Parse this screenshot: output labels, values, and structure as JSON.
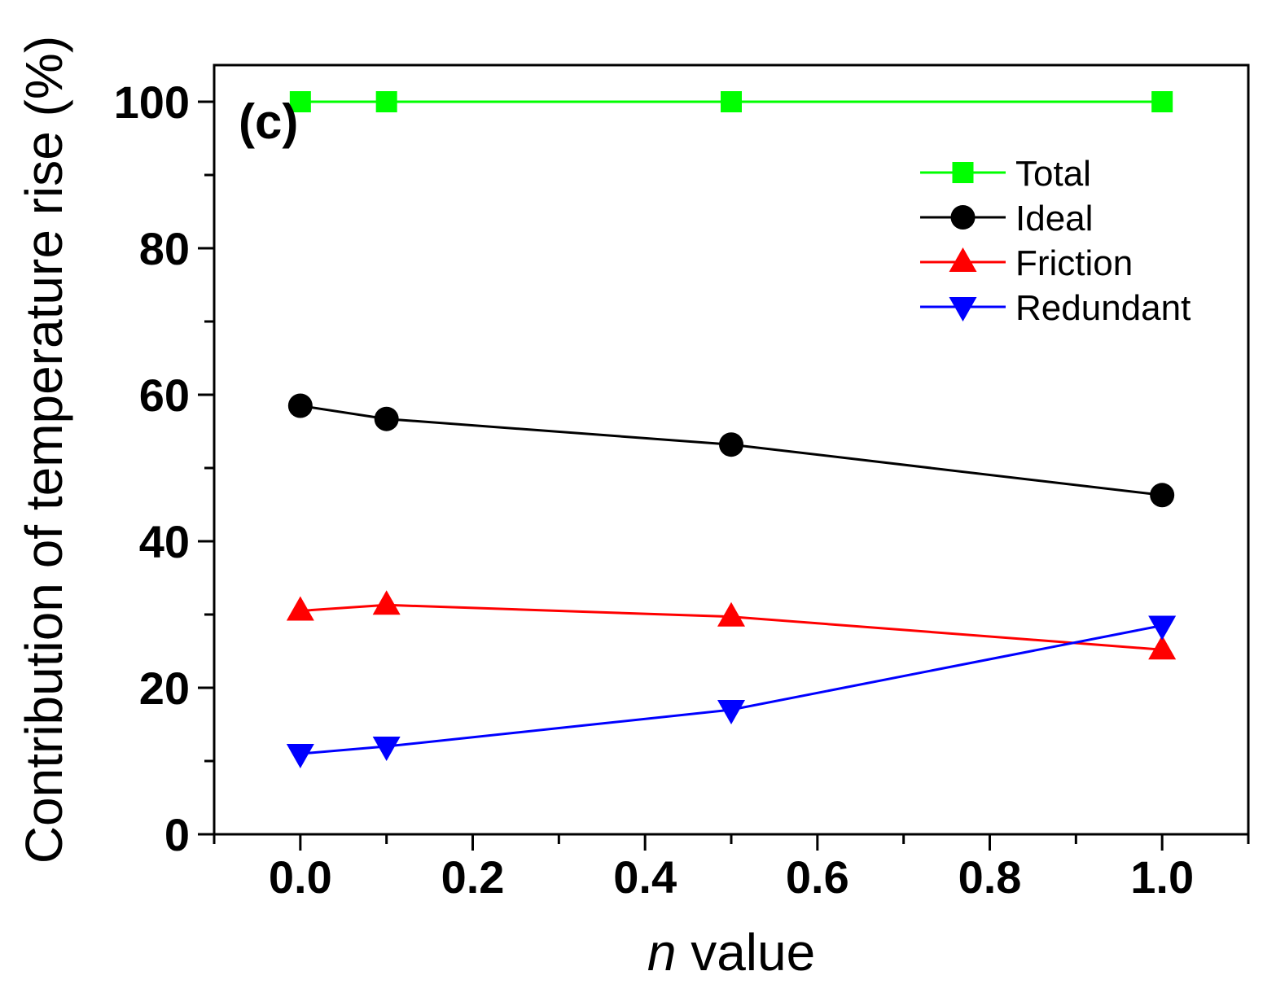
{
  "chart_data": {
    "type": "line",
    "title": "",
    "panel_label": "(c)",
    "xlabel_italic": "n",
    "xlabel_rest": " value",
    "ylabel": "Contribution of temperature rise (%)",
    "xlim": [
      -0.1,
      1.1
    ],
    "ylim": [
      0,
      105
    ],
    "xticks": [
      "0.0",
      "0.2",
      "0.4",
      "0.6",
      "0.8",
      "1.0"
    ],
    "yticks": [
      "0",
      "20",
      "40",
      "60",
      "80",
      "100"
    ],
    "x": [
      0.0,
      0.1,
      0.5,
      1.0
    ],
    "legend_position": "top-right",
    "series": [
      {
        "name": "Total",
        "marker": "square",
        "color": "#00ff00",
        "values": [
          100,
          100,
          100,
          100
        ]
      },
      {
        "name": "Ideal",
        "marker": "circle",
        "color": "#000000",
        "values": [
          58.5,
          56.7,
          53.2,
          46.3
        ]
      },
      {
        "name": "Friction",
        "marker": "triangle-up",
        "color": "#ff0000",
        "values": [
          30.5,
          31.3,
          29.7,
          25.2
        ]
      },
      {
        "name": "Redundant",
        "marker": "triangle-down",
        "color": "#0000ff",
        "values": [
          11.0,
          12.0,
          17.0,
          28.5
        ]
      }
    ]
  }
}
